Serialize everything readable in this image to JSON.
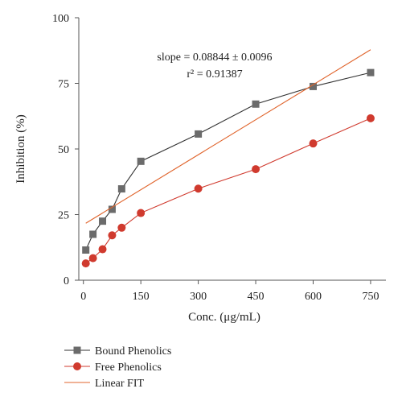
{
  "chart_data": {
    "type": "line",
    "xlabel": "Conc. (μg/mL)",
    "ylabel": "Inhibition (%)",
    "xlim": [
      -12,
      790
    ],
    "ylim": [
      0,
      100
    ],
    "xticks": [
      0,
      150,
      300,
      450,
      600,
      750
    ],
    "xtick_labels": [
      "0",
      "150",
      "300",
      "450",
      "600",
      "750"
    ],
    "yticks": [
      0,
      25,
      50,
      75,
      100
    ],
    "ytick_labels": [
      "0",
      "25",
      "50",
      "75",
      "100"
    ],
    "legend_position": "bottom-left",
    "annotations": {
      "slope": "slope = 0.08844 ± 0.0096",
      "r2": "r² = 0.91387"
    },
    "series": [
      {
        "name": "Bound Phenolics",
        "color": "#6b6b6b",
        "marker": "square",
        "x": [
          6.25,
          25,
          50,
          75,
          100,
          150,
          300,
          450,
          600,
          750
        ],
        "y": [
          11.5,
          17.5,
          22.5,
          27,
          34.8,
          45.3,
          55.7,
          67.1,
          73.8,
          79.1
        ]
      },
      {
        "name": "Free Phenolics",
        "color": "#d03a2e",
        "marker": "circle",
        "x": [
          6.25,
          25,
          50,
          75,
          100,
          150,
          300,
          450,
          600,
          750
        ],
        "y": [
          6.4,
          8.4,
          11.8,
          17.1,
          20.0,
          25.6,
          34.9,
          42.3,
          52.1,
          61.7
        ]
      },
      {
        "name": "Linear FIT",
        "color": "#e0642c",
        "marker": "none",
        "x": [
          6.25,
          750
        ],
        "y": [
          21.7,
          87.8
        ]
      }
    ]
  }
}
